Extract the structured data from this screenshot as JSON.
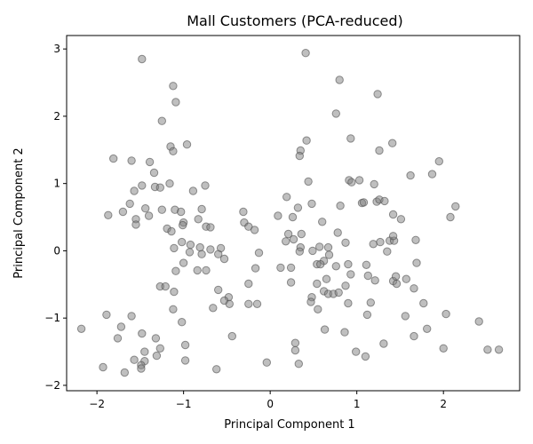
{
  "chart_data": {
    "type": "scatter",
    "title": "Mall Customers (PCA-reduced)",
    "xlabel": "Principal Component 1",
    "ylabel": "Principal Component 2",
    "xlim": [
      -2.35,
      2.88
    ],
    "ylim": [
      -2.08,
      3.2
    ],
    "xticks": [
      -2,
      -1,
      0,
      1,
      2
    ],
    "yticks": [
      -2,
      -1,
      0,
      1,
      2,
      3
    ],
    "grid": false,
    "marker_color": "#808080",
    "points": [
      [
        -1.48,
        2.85
      ],
      [
        -1.12,
        2.45
      ],
      [
        -1.09,
        2.21
      ],
      [
        -1.25,
        1.93
      ],
      [
        -0.96,
        1.58
      ],
      [
        -1.15,
        1.55
      ],
      [
        -1.81,
        1.37
      ],
      [
        -1.6,
        1.34
      ],
      [
        -1.39,
        1.32
      ],
      [
        -1.12,
        1.48
      ],
      [
        -1.34,
        1.16
      ],
      [
        -1.48,
        0.97
      ],
      [
        -1.33,
        0.95
      ],
      [
        -1.27,
        0.94
      ],
      [
        -1.16,
        1.0
      ],
      [
        -1.57,
        0.89
      ],
      [
        -0.89,
        0.89
      ],
      [
        -0.75,
        0.97
      ],
      [
        -1.62,
        0.7
      ],
      [
        -1.7,
        0.58
      ],
      [
        -1.87,
        0.53
      ],
      [
        -1.44,
        0.63
      ],
      [
        -1.4,
        0.52
      ],
      [
        -1.25,
        0.61
      ],
      [
        -1.1,
        0.61
      ],
      [
        -1.03,
        0.58
      ],
      [
        -1.55,
        0.47
      ],
      [
        -1.55,
        0.39
      ],
      [
        -1.0,
        0.42
      ],
      [
        -0.83,
        0.47
      ],
      [
        -0.79,
        0.62
      ],
      [
        -1.19,
        0.33
      ],
      [
        -1.14,
        0.29
      ],
      [
        -1.01,
        0.38
      ],
      [
        -0.74,
        0.36
      ],
      [
        -0.69,
        0.35
      ],
      [
        -1.02,
        0.13
      ],
      [
        -0.92,
        0.09
      ],
      [
        -1.11,
        0.04
      ],
      [
        -0.93,
        -0.02
      ],
      [
        -0.81,
        0.05
      ],
      [
        -0.79,
        -0.05
      ],
      [
        -0.69,
        0.02
      ],
      [
        -0.57,
        0.04
      ],
      [
        -0.6,
        -0.05
      ],
      [
        -0.53,
        -0.12
      ],
      [
        -1.0,
        -0.18
      ],
      [
        -0.84,
        -0.29
      ],
      [
        -0.74,
        -0.29
      ],
      [
        -1.09,
        -0.3
      ],
      [
        -1.27,
        -0.53
      ],
      [
        -1.21,
        -0.53
      ],
      [
        -1.11,
        -0.61
      ],
      [
        -0.6,
        -0.58
      ],
      [
        -0.48,
        -0.69
      ],
      [
        -0.53,
        -0.74
      ],
      [
        -0.47,
        -0.79
      ],
      [
        -0.66,
        -0.85
      ],
      [
        -1.12,
        -0.87
      ],
      [
        -1.02,
        -1.06
      ],
      [
        -1.89,
        -0.95
      ],
      [
        -1.6,
        -0.97
      ],
      [
        -2.18,
        -1.16
      ],
      [
        -1.72,
        -1.13
      ],
      [
        -1.76,
        -1.3
      ],
      [
        -1.48,
        -1.23
      ],
      [
        -1.32,
        -1.3
      ],
      [
        -1.27,
        -1.45
      ],
      [
        -1.45,
        -1.5
      ],
      [
        -1.31,
        -1.56
      ],
      [
        -1.57,
        -1.62
      ],
      [
        -1.45,
        -1.64
      ],
      [
        -1.49,
        -1.7
      ],
      [
        -1.49,
        -1.75
      ],
      [
        -1.93,
        -1.73
      ],
      [
        -1.68,
        -1.81
      ],
      [
        -0.98,
        -1.4
      ],
      [
        -0.98,
        -1.63
      ],
      [
        -0.62,
        -1.76
      ],
      [
        -0.44,
        -1.27
      ],
      [
        -0.31,
        0.58
      ],
      [
        -0.3,
        0.42
      ],
      [
        -0.25,
        0.36
      ],
      [
        -0.18,
        0.31
      ],
      [
        -0.13,
        -0.03
      ],
      [
        -0.17,
        -0.26
      ],
      [
        -0.25,
        -0.49
      ],
      [
        -0.25,
        -0.79
      ],
      [
        -0.15,
        -0.79
      ],
      [
        0.41,
        2.94
      ],
      [
        0.8,
        2.54
      ],
      [
        1.24,
        2.33
      ],
      [
        0.76,
        2.04
      ],
      [
        0.93,
        1.67
      ],
      [
        0.42,
        1.64
      ],
      [
        0.35,
        1.49
      ],
      [
        0.34,
        1.41
      ],
      [
        1.41,
        1.6
      ],
      [
        1.26,
        1.49
      ],
      [
        1.62,
        1.12
      ],
      [
        1.95,
        1.33
      ],
      [
        1.87,
        1.14
      ],
      [
        0.44,
        1.03
      ],
      [
        0.91,
        1.05
      ],
      [
        0.94,
        1.02
      ],
      [
        1.03,
        1.05
      ],
      [
        1.2,
        0.99
      ],
      [
        0.81,
        0.67
      ],
      [
        1.06,
        0.71
      ],
      [
        1.08,
        0.72
      ],
      [
        1.23,
        0.73
      ],
      [
        1.26,
        0.76
      ],
      [
        1.32,
        0.74
      ],
      [
        0.09,
        0.52
      ],
      [
        0.19,
        0.8
      ],
      [
        0.26,
        0.5
      ],
      [
        0.32,
        0.64
      ],
      [
        0.48,
        0.7
      ],
      [
        0.6,
        0.43
      ],
      [
        1.42,
        0.54
      ],
      [
        1.51,
        0.47
      ],
      [
        2.14,
        0.66
      ],
      [
        2.08,
        0.5
      ],
      [
        0.21,
        0.25
      ],
      [
        0.27,
        0.17
      ],
      [
        0.36,
        0.25
      ],
      [
        0.18,
        0.14
      ],
      [
        0.35,
        0.05
      ],
      [
        0.34,
        -0.01
      ],
      [
        0.49,
        0.0
      ],
      [
        0.57,
        0.06
      ],
      [
        0.67,
        0.05
      ],
      [
        0.68,
        -0.06
      ],
      [
        0.62,
        -0.15
      ],
      [
        0.54,
        -0.2
      ],
      [
        0.78,
        0.27
      ],
      [
        0.87,
        0.12
      ],
      [
        1.19,
        0.1
      ],
      [
        1.27,
        0.13
      ],
      [
        1.38,
        0.15
      ],
      [
        1.43,
        0.15
      ],
      [
        1.42,
        0.22
      ],
      [
        1.35,
        -0.01
      ],
      [
        1.68,
        0.16
      ],
      [
        1.69,
        -0.18
      ],
      [
        0.12,
        -0.25
      ],
      [
        0.24,
        -0.25
      ],
      [
        0.24,
        -0.47
      ],
      [
        0.58,
        -0.2
      ],
      [
        0.76,
        -0.23
      ],
      [
        0.9,
        -0.2
      ],
      [
        1.11,
        -0.21
      ],
      [
        0.93,
        -0.35
      ],
      [
        1.13,
        -0.37
      ],
      [
        1.21,
        -0.44
      ],
      [
        1.42,
        -0.45
      ],
      [
        1.46,
        -0.49
      ],
      [
        1.45,
        -0.38
      ],
      [
        1.57,
        -0.42
      ],
      [
        1.66,
        -0.56
      ],
      [
        0.54,
        -0.49
      ],
      [
        0.65,
        -0.42
      ],
      [
        0.87,
        -0.52
      ],
      [
        0.48,
        -0.69
      ],
      [
        0.62,
        -0.6
      ],
      [
        0.67,
        -0.64
      ],
      [
        0.73,
        -0.64
      ],
      [
        0.79,
        -0.62
      ],
      [
        0.47,
        -0.76
      ],
      [
        0.9,
        -0.78
      ],
      [
        0.55,
        -0.87
      ],
      [
        1.16,
        -0.77
      ],
      [
        1.12,
        -0.95
      ],
      [
        1.56,
        -0.97
      ],
      [
        1.77,
        -0.78
      ],
      [
        2.03,
        -0.94
      ],
      [
        2.41,
        -1.05
      ],
      [
        1.81,
        -1.16
      ],
      [
        1.66,
        -1.27
      ],
      [
        0.63,
        -1.17
      ],
      [
        0.86,
        -1.21
      ],
      [
        0.29,
        -1.37
      ],
      [
        1.31,
        -1.38
      ],
      [
        0.99,
        -1.5
      ],
      [
        1.1,
        -1.57
      ],
      [
        0.29,
        -1.48
      ],
      [
        0.33,
        -1.68
      ],
      [
        -0.04,
        -1.66
      ],
      [
        2.0,
        -1.45
      ],
      [
        2.51,
        -1.47
      ],
      [
        2.64,
        -1.47
      ]
    ]
  }
}
